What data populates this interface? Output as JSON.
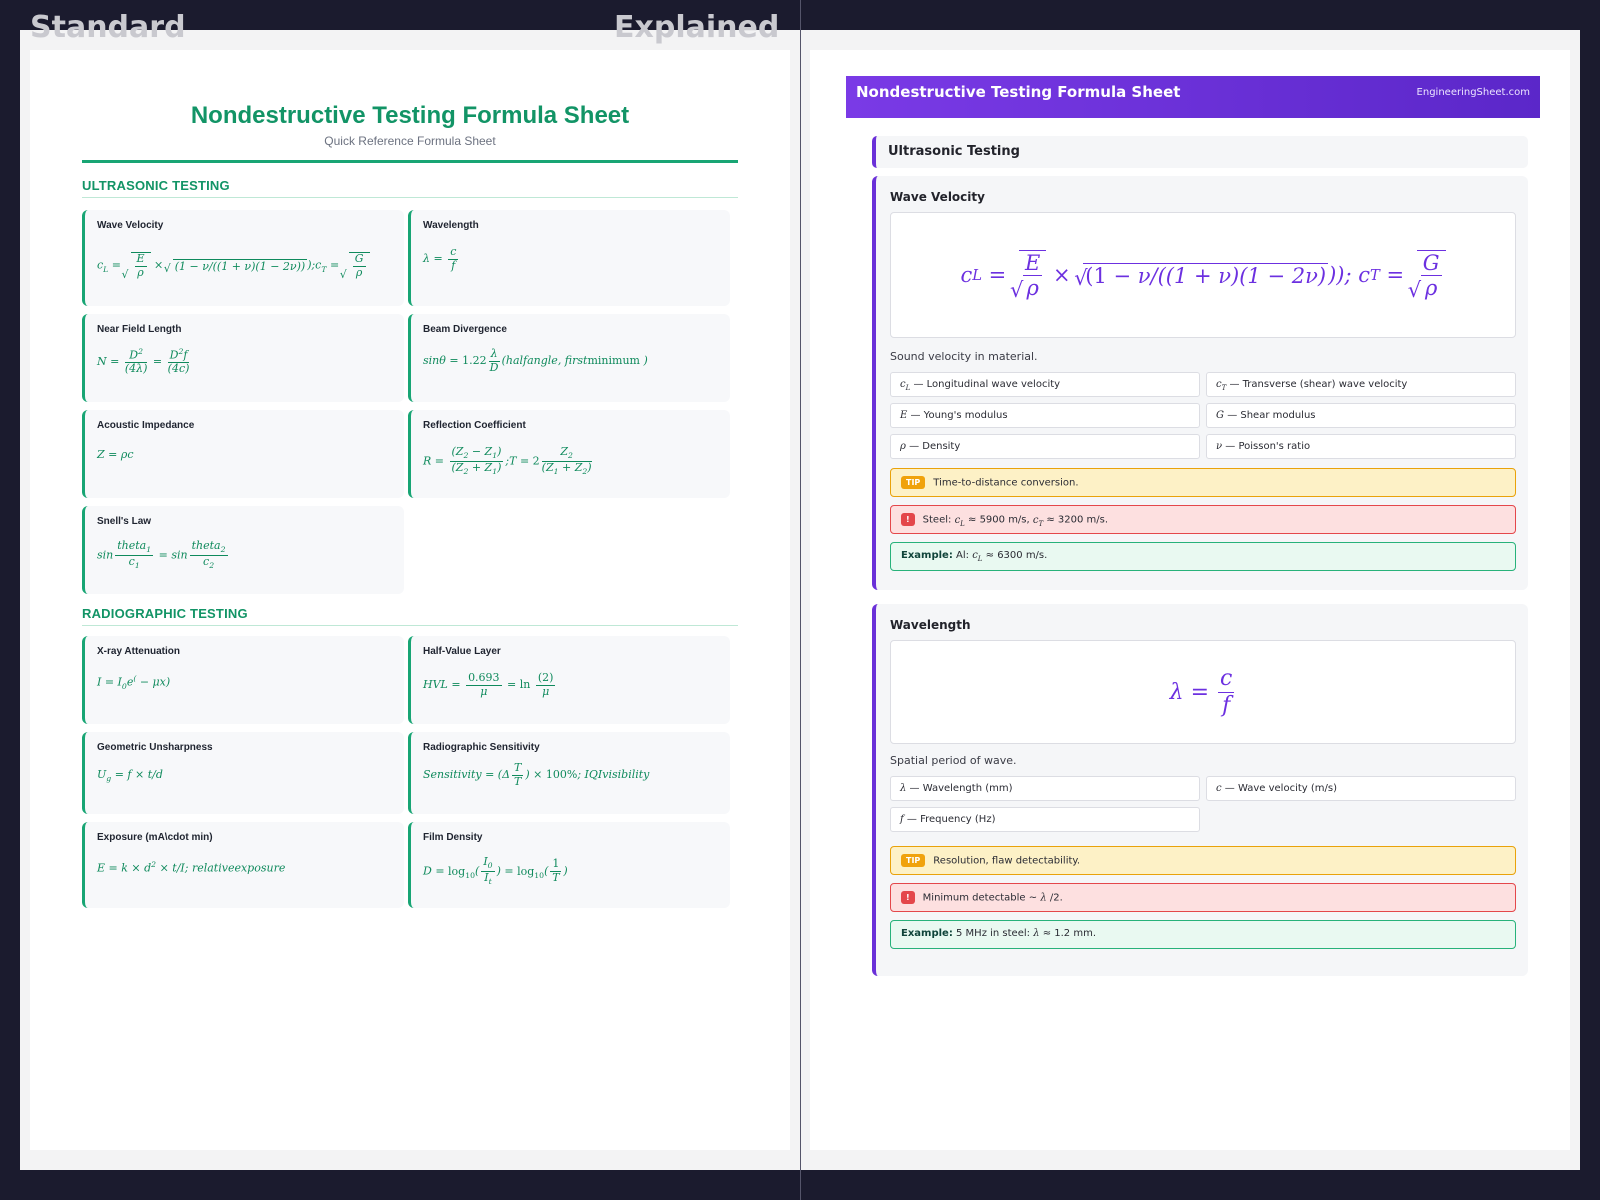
{
  "labels": {
    "standard": "Standard",
    "explained": "Explained"
  },
  "standard": {
    "title": "Nondestructive Testing Formula Sheet",
    "subtitle": "Quick Reference Formula Sheet",
    "sections": [
      {
        "heading": "ULTRASONIC TESTING",
        "cards": [
          {
            "title": "Wave Velocity"
          },
          {
            "title": "Wavelength"
          },
          {
            "title": "Near Field Length"
          },
          {
            "title": "Beam Divergence"
          },
          {
            "title": "Acoustic Impedance"
          },
          {
            "title": "Reflection Coefficient"
          },
          {
            "title": "Snell's Law"
          }
        ]
      },
      {
        "heading": "RADIOGRAPHIC TESTING",
        "cards": [
          {
            "title": "X-ray Attenuation"
          },
          {
            "title": "Half-Value Layer"
          },
          {
            "title": "Geometric Unsharpness"
          },
          {
            "title": "Radiographic Sensitivity"
          },
          {
            "title": "Exposure (mA\\cdot min)"
          },
          {
            "title": "Film Density"
          }
        ]
      }
    ]
  },
  "explained": {
    "banner_title": "Nondestructive Testing Formula Sheet",
    "site": "EngineeringSheet.com",
    "section": "Ultrasonic Testing",
    "cards": [
      {
        "title": "Wave Velocity",
        "description": "Sound velocity in material.",
        "variables": [
          "— Longitudinal wave velocity",
          "— Transverse (shear) wave velocity",
          "— Young's modulus",
          "— Shear modulus",
          "— Density",
          "— Poisson's ratio"
        ],
        "tip": "Time-to-distance conversion.",
        "tip_badge": "TIP",
        "warn_badge": "!",
        "example_label": "Example:"
      },
      {
        "title": "Wavelength",
        "description": "Spatial period of wave.",
        "variables": [
          "— Wavelength (mm)",
          "— Wave velocity (m/s)",
          "— Frequency (Hz)"
        ],
        "tip": "Resolution, flaw detectability.",
        "tip_badge": "TIP",
        "warn_badge": "!",
        "example_label": "Example:"
      }
    ]
  },
  "colors": {
    "standard_accent": "#18a574",
    "explained_accent": "#6a30d8",
    "background": "#1b1b2e"
  }
}
